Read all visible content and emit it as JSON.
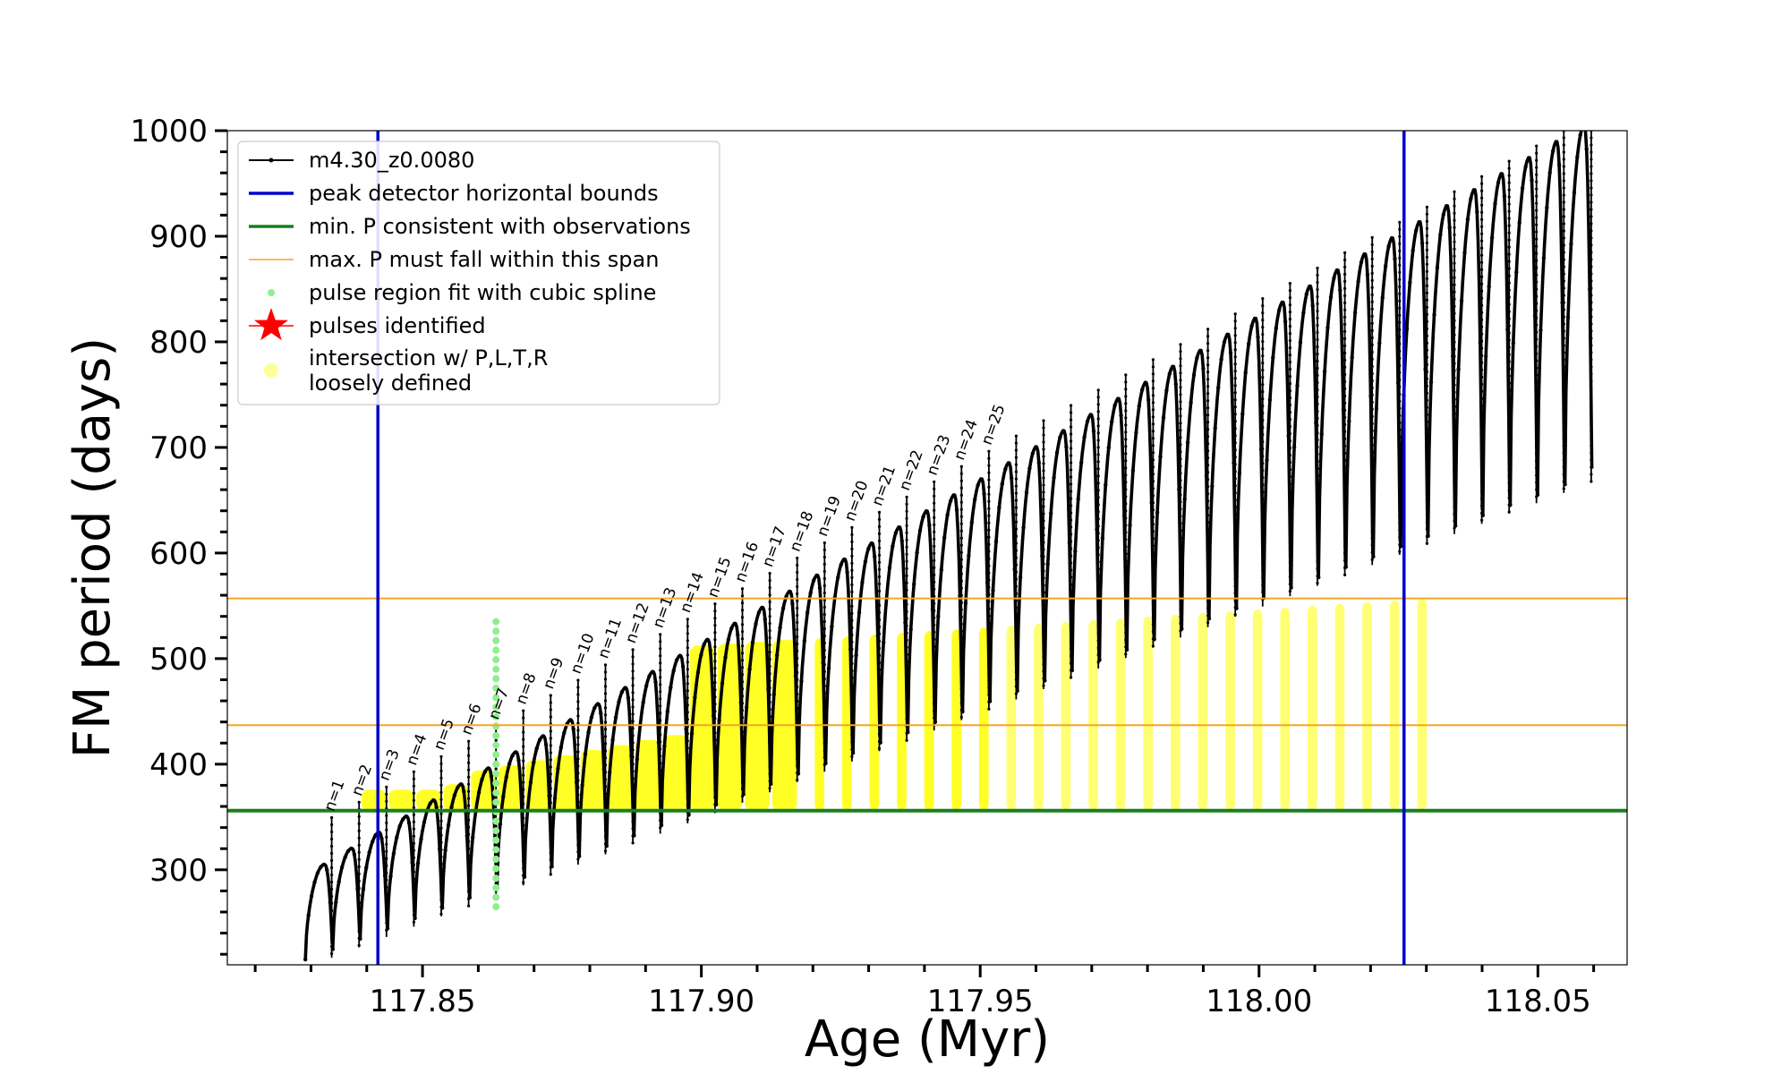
{
  "chart_data": {
    "type": "line",
    "xlabel": "Age (Myr)",
    "ylabel": "FM period (days)",
    "xlim": [
      117.815,
      118.066
    ],
    "ylim": [
      210,
      1000
    ],
    "xticks": [
      117.85,
      117.9,
      117.95,
      118.0,
      118.05
    ],
    "xtick_labels": [
      "117.85",
      "117.90",
      "117.95",
      "118.00",
      "118.05"
    ],
    "yticks": [
      300,
      400,
      500,
      600,
      700,
      800,
      900,
      1000
    ],
    "ytick_labels": [
      "300",
      "400",
      "500",
      "600",
      "700",
      "800",
      "900",
      "1000"
    ],
    "grid": false,
    "legend_position": "top-left",
    "colors": {
      "model": "#000000",
      "peak_bounds": "#0000cc",
      "min_period": "#1a7f1a",
      "max_period_span": "#f5a623",
      "spline": "#90ee90",
      "pulses": "#ff0000",
      "intersection": "#ffff00"
    },
    "legend": [
      {
        "key": "model",
        "label": "m4.30_z0.0080",
        "style": "line-marker"
      },
      {
        "key": "peak_bounds",
        "label": "peak detector horizontal bounds",
        "style": "line"
      },
      {
        "key": "min_period",
        "label": "min. P consistent with observations",
        "style": "line"
      },
      {
        "key": "max_period_span",
        "label": "max. P must fall within this span",
        "style": "thin-line"
      },
      {
        "key": "spline",
        "label": "pulse region fit with cubic spline",
        "style": "dot"
      },
      {
        "key": "pulses",
        "label": "pulses identified",
        "style": "star"
      },
      {
        "key": "intersection",
        "label": "intersection w/ P,L,T,R",
        "label2": "loosely defined",
        "style": "circle"
      }
    ],
    "vertical_lines": [
      117.842,
      118.026
    ],
    "horizontal_lines": {
      "min_period": 356,
      "max_period_lower": 437,
      "max_period_upper": 557
    },
    "pulse_labels": [
      "n=1",
      "n=2",
      "n=3",
      "n=4",
      "n=5",
      "n=6",
      "n=7",
      "n=8",
      "n=9",
      "n=10",
      "n=11",
      "n=12",
      "n=13",
      "n=14",
      "n=15",
      "n=16",
      "n=17",
      "n=18",
      "n=19",
      "n=20",
      "n=21",
      "n=22",
      "n=23",
      "n=24",
      "n=25"
    ],
    "cycles": {
      "count": 47,
      "first_pulse_age": 117.829,
      "pulse_spacing_myr": 0.00491,
      "trough_start": 215,
      "trough_end": 665,
      "peak_start": 305,
      "peak_end": 1005,
      "spike_start": 335,
      "spike_end": 1000
    },
    "highlighted_cycle_index": 6,
    "highlighted_cycle_range": [
      265,
      540
    ]
  }
}
